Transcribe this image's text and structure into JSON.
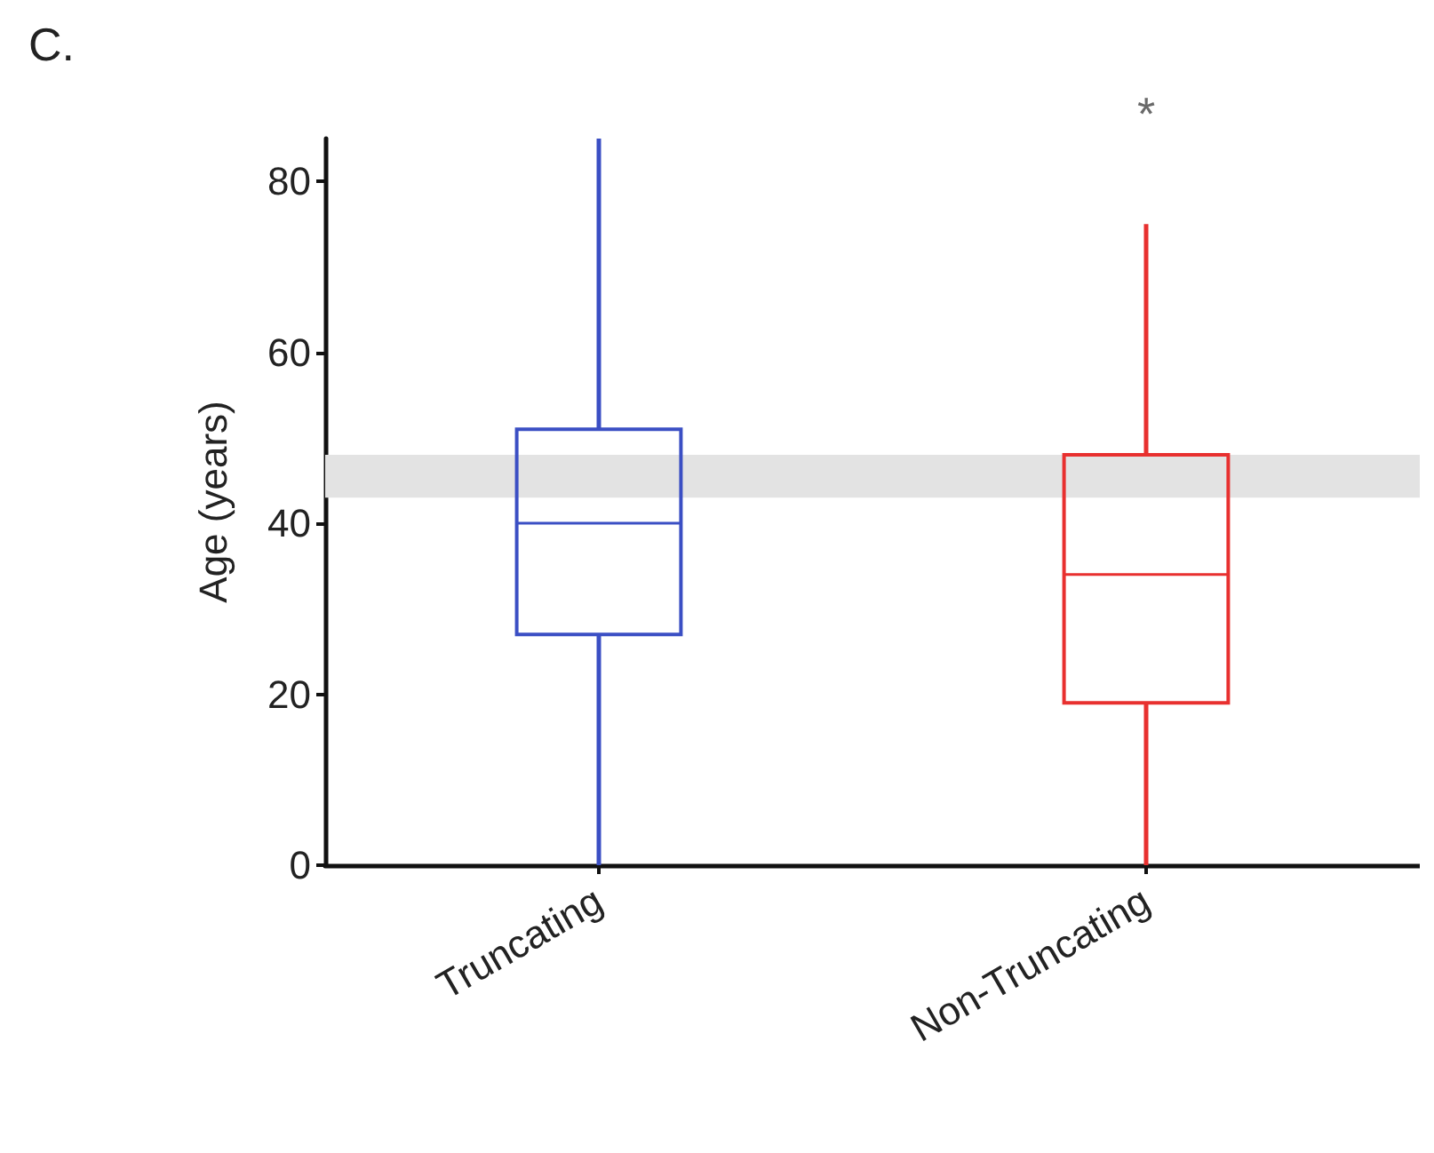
{
  "chart_data": {
    "type": "box",
    "title": "C.",
    "ylabel": "Age (years)",
    "categories": [
      "Truncating",
      "Non-Truncating"
    ],
    "series": [
      {
        "color": "#3b4fc4",
        "boxes": [
          {
            "low": 0,
            "q1": 27,
            "median": 40,
            "q3": 51,
            "high": 85
          },
          null
        ]
      },
      {
        "color": "#e8302f",
        "boxes": [
          null,
          {
            "low": 0,
            "q1": 19,
            "median": 34,
            "q3": 48,
            "high": 75
          }
        ]
      }
    ],
    "ylim": [
      0,
      85
    ],
    "yticks": [
      0,
      20,
      40,
      60,
      80
    ],
    "bands": [
      {
        "axis": "y",
        "from": 43,
        "to": 48,
        "color": "#e3e3e3"
      }
    ],
    "annotations": [
      "*"
    ],
    "grid": false
  }
}
